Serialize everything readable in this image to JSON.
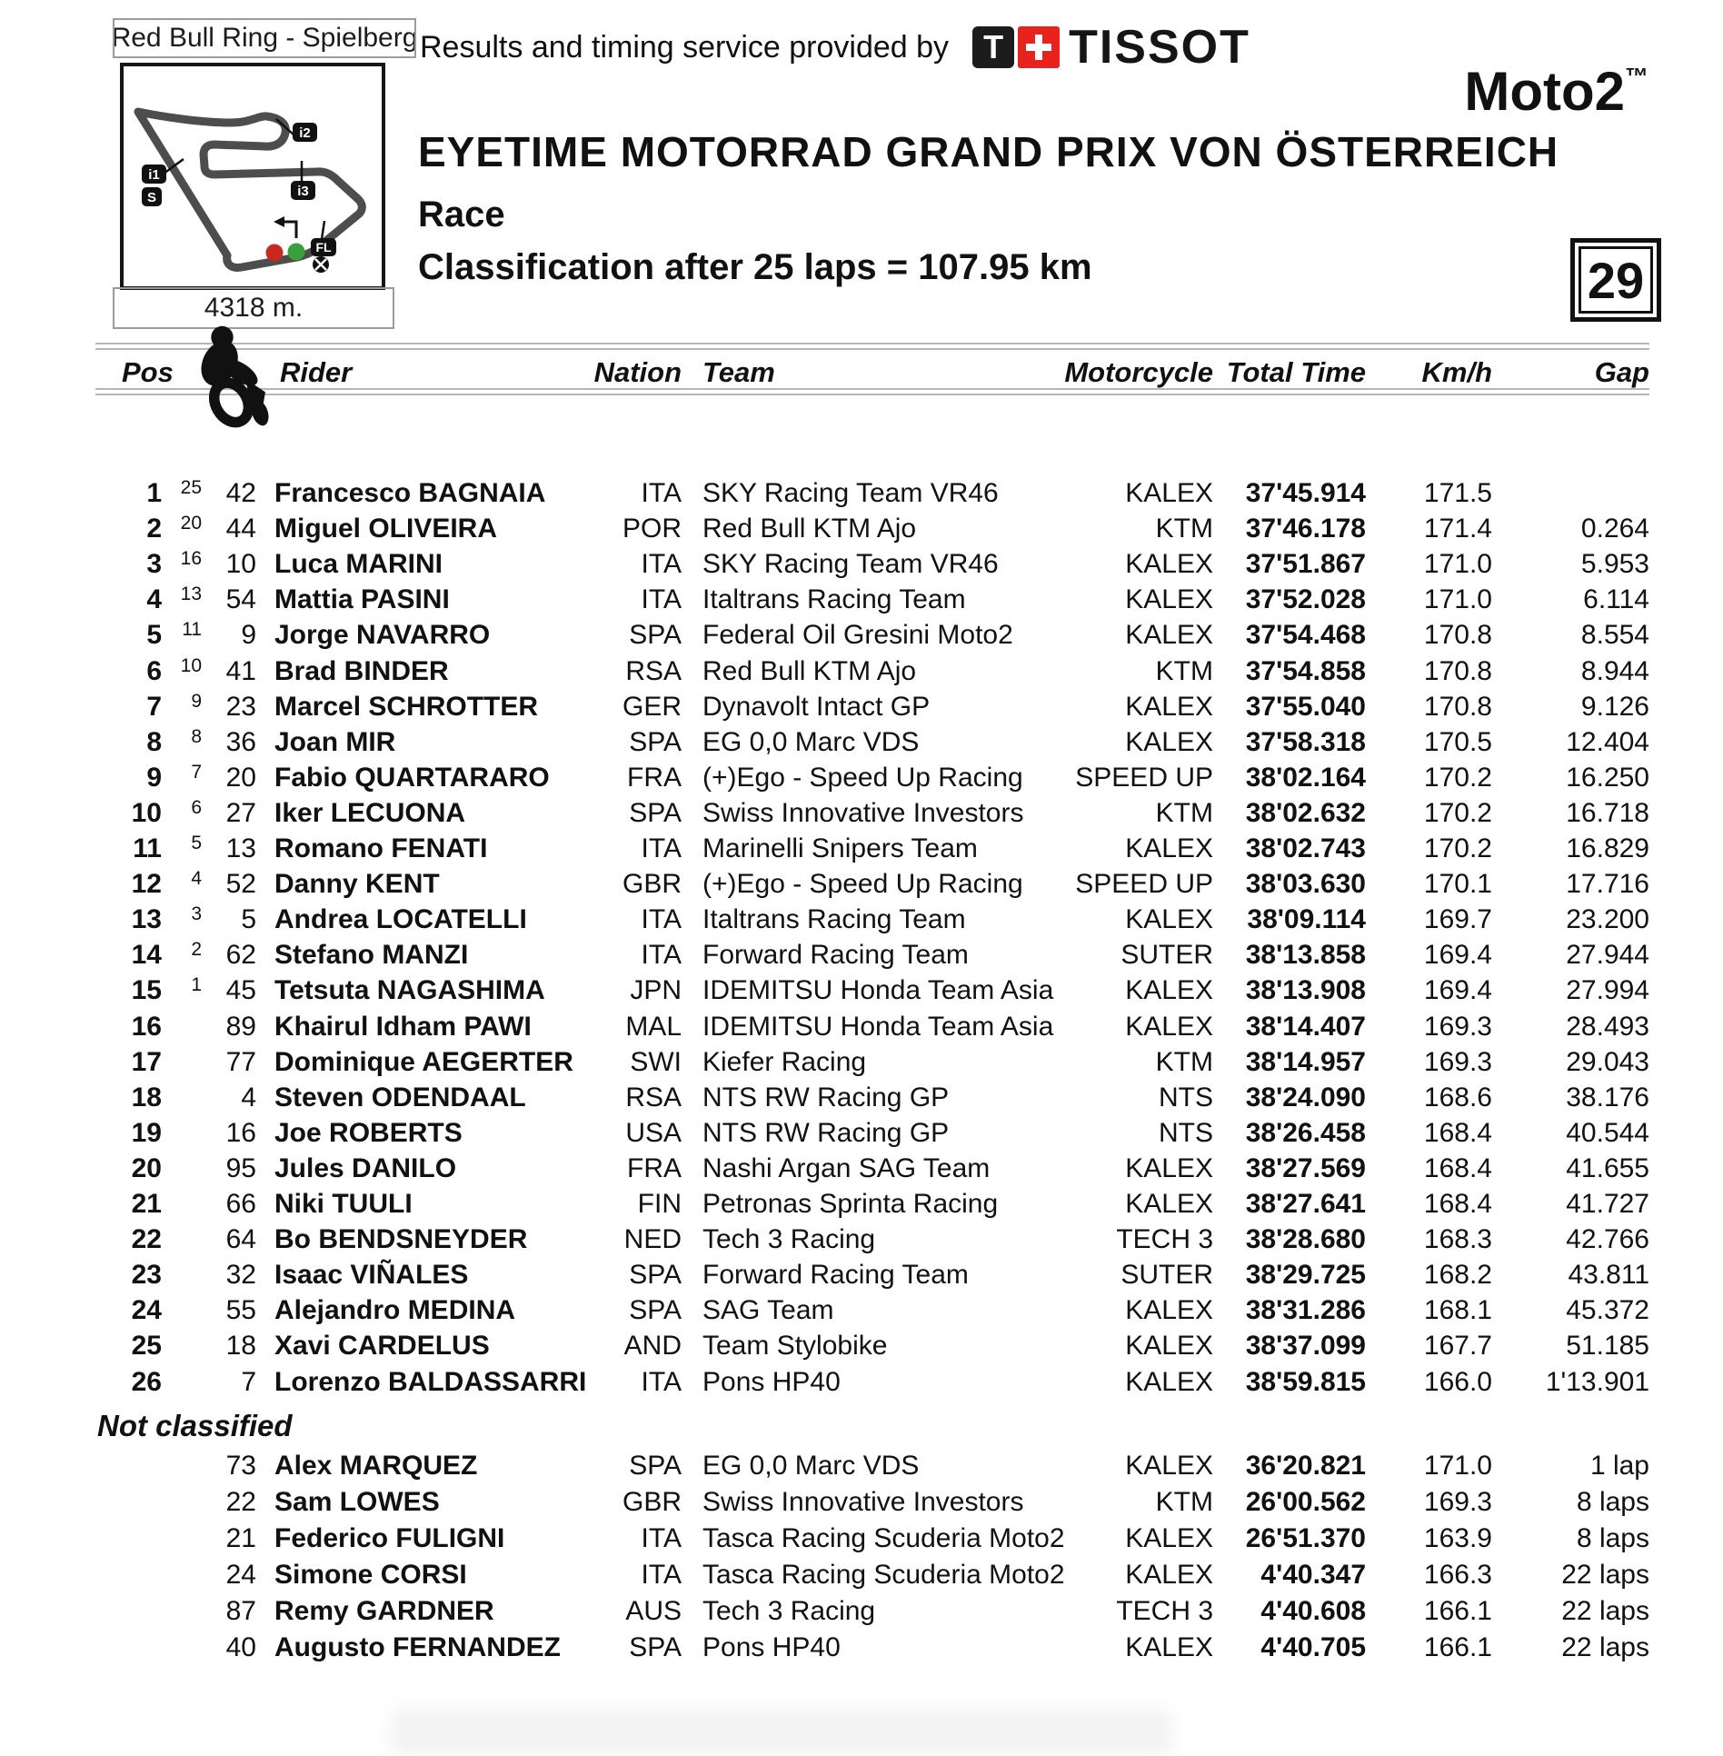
{
  "page": {
    "number": "29"
  },
  "header": {
    "track_name": "Red Bull Ring - Spielberg",
    "track_length": "4318 m.",
    "provider_text": "Results and timing service provided by",
    "tissot_t": "T",
    "tissot_label": "TISSOT",
    "class_label": "Moto2",
    "trademark": "™",
    "event_title": "EYETIME MOTORRAD GRAND PRIX VON ÖSTERREICH",
    "session": "Race",
    "classification_line": "Classification after 25 laps = 107.95 km"
  },
  "map": {
    "markers": {
      "i1": "i1",
      "s": "S",
      "i2": "i2",
      "i3": "i3",
      "fl": "FL"
    }
  },
  "colors": {
    "tissot_red": "#e8221d",
    "dot_red": "#c8281e",
    "dot_green": "#3aa03a",
    "track_gray": "#4d4d4d"
  },
  "table": {
    "columns": {
      "pos": "Pos",
      "rider": "Rider",
      "nation": "Nation",
      "team": "Team",
      "motorcycle": "Motorcycle",
      "total_time": "Total Time",
      "kmh": "Km/h",
      "gap": "Gap"
    },
    "rows": [
      {
        "pos": "1",
        "pts": "25",
        "num": "42",
        "rider": "Francesco BAGNAIA",
        "nation": "ITA",
        "team": "SKY Racing Team VR46",
        "moto": "KALEX",
        "time": "37'45.914",
        "kmh": "171.5",
        "gap": ""
      },
      {
        "pos": "2",
        "pts": "20",
        "num": "44",
        "rider": "Miguel OLIVEIRA",
        "nation": "POR",
        "team": "Red Bull KTM Ajo",
        "moto": "KTM",
        "time": "37'46.178",
        "kmh": "171.4",
        "gap": "0.264"
      },
      {
        "pos": "3",
        "pts": "16",
        "num": "10",
        "rider": "Luca MARINI",
        "nation": "ITA",
        "team": "SKY Racing Team VR46",
        "moto": "KALEX",
        "time": "37'51.867",
        "kmh": "171.0",
        "gap": "5.953"
      },
      {
        "pos": "4",
        "pts": "13",
        "num": "54",
        "rider": "Mattia PASINI",
        "nation": "ITA",
        "team": "Italtrans Racing Team",
        "moto": "KALEX",
        "time": "37'52.028",
        "kmh": "171.0",
        "gap": "6.114"
      },
      {
        "pos": "5",
        "pts": "11",
        "num": "9",
        "rider": "Jorge NAVARRO",
        "nation": "SPA",
        "team": "Federal Oil Gresini Moto2",
        "moto": "KALEX",
        "time": "37'54.468",
        "kmh": "170.8",
        "gap": "8.554"
      },
      {
        "pos": "6",
        "pts": "10",
        "num": "41",
        "rider": "Brad BINDER",
        "nation": "RSA",
        "team": "Red Bull KTM Ajo",
        "moto": "KTM",
        "time": "37'54.858",
        "kmh": "170.8",
        "gap": "8.944"
      },
      {
        "pos": "7",
        "pts": "9",
        "num": "23",
        "rider": "Marcel SCHROTTER",
        "nation": "GER",
        "team": "Dynavolt Intact GP",
        "moto": "KALEX",
        "time": "37'55.040",
        "kmh": "170.8",
        "gap": "9.126"
      },
      {
        "pos": "8",
        "pts": "8",
        "num": "36",
        "rider": "Joan MIR",
        "nation": "SPA",
        "team": "EG 0,0 Marc VDS",
        "moto": "KALEX",
        "time": "37'58.318",
        "kmh": "170.5",
        "gap": "12.404"
      },
      {
        "pos": "9",
        "pts": "7",
        "num": "20",
        "rider": "Fabio QUARTARARO",
        "nation": "FRA",
        "team": "(+)Ego - Speed Up Racing",
        "moto": "SPEED UP",
        "time": "38'02.164",
        "kmh": "170.2",
        "gap": "16.250"
      },
      {
        "pos": "10",
        "pts": "6",
        "num": "27",
        "rider": "Iker LECUONA",
        "nation": "SPA",
        "team": "Swiss Innovative Investors",
        "moto": "KTM",
        "time": "38'02.632",
        "kmh": "170.2",
        "gap": "16.718"
      },
      {
        "pos": "11",
        "pts": "5",
        "num": "13",
        "rider": "Romano FENATI",
        "nation": "ITA",
        "team": "Marinelli Snipers Team",
        "moto": "KALEX",
        "time": "38'02.743",
        "kmh": "170.2",
        "gap": "16.829"
      },
      {
        "pos": "12",
        "pts": "4",
        "num": "52",
        "rider": "Danny KENT",
        "nation": "GBR",
        "team": "(+)Ego - Speed Up Racing",
        "moto": "SPEED UP",
        "time": "38'03.630",
        "kmh": "170.1",
        "gap": "17.716"
      },
      {
        "pos": "13",
        "pts": "3",
        "num": "5",
        "rider": "Andrea LOCATELLI",
        "nation": "ITA",
        "team": "Italtrans Racing Team",
        "moto": "KALEX",
        "time": "38'09.114",
        "kmh": "169.7",
        "gap": "23.200"
      },
      {
        "pos": "14",
        "pts": "2",
        "num": "62",
        "rider": "Stefano MANZI",
        "nation": "ITA",
        "team": "Forward Racing Team",
        "moto": "SUTER",
        "time": "38'13.858",
        "kmh": "169.4",
        "gap": "27.944"
      },
      {
        "pos": "15",
        "pts": "1",
        "num": "45",
        "rider": "Tetsuta NAGASHIMA",
        "nation": "JPN",
        "team": "IDEMITSU Honda Team Asia",
        "moto": "KALEX",
        "time": "38'13.908",
        "kmh": "169.4",
        "gap": "27.994"
      },
      {
        "pos": "16",
        "pts": "",
        "num": "89",
        "rider": "Khairul Idham PAWI",
        "nation": "MAL",
        "team": "IDEMITSU Honda Team Asia",
        "moto": "KALEX",
        "time": "38'14.407",
        "kmh": "169.3",
        "gap": "28.493"
      },
      {
        "pos": "17",
        "pts": "",
        "num": "77",
        "rider": "Dominique AEGERTER",
        "nation": "SWI",
        "team": "Kiefer Racing",
        "moto": "KTM",
        "time": "38'14.957",
        "kmh": "169.3",
        "gap": "29.043"
      },
      {
        "pos": "18",
        "pts": "",
        "num": "4",
        "rider": "Steven ODENDAAL",
        "nation": "RSA",
        "team": "NTS RW Racing GP",
        "moto": "NTS",
        "time": "38'24.090",
        "kmh": "168.6",
        "gap": "38.176"
      },
      {
        "pos": "19",
        "pts": "",
        "num": "16",
        "rider": "Joe ROBERTS",
        "nation": "USA",
        "team": "NTS RW Racing GP",
        "moto": "NTS",
        "time": "38'26.458",
        "kmh": "168.4",
        "gap": "40.544"
      },
      {
        "pos": "20",
        "pts": "",
        "num": "95",
        "rider": "Jules DANILO",
        "nation": "FRA",
        "team": "Nashi Argan SAG Team",
        "moto": "KALEX",
        "time": "38'27.569",
        "kmh": "168.4",
        "gap": "41.655"
      },
      {
        "pos": "21",
        "pts": "",
        "num": "66",
        "rider": "Niki TUULI",
        "nation": "FIN",
        "team": "Petronas Sprinta Racing",
        "moto": "KALEX",
        "time": "38'27.641",
        "kmh": "168.4",
        "gap": "41.727"
      },
      {
        "pos": "22",
        "pts": "",
        "num": "64",
        "rider": "Bo BENDSNEYDER",
        "nation": "NED",
        "team": "Tech 3 Racing",
        "moto": "TECH 3",
        "time": "38'28.680",
        "kmh": "168.3",
        "gap": "42.766"
      },
      {
        "pos": "23",
        "pts": "",
        "num": "32",
        "rider": "Isaac VIÑALES",
        "nation": "SPA",
        "team": "Forward Racing Team",
        "moto": "SUTER",
        "time": "38'29.725",
        "kmh": "168.2",
        "gap": "43.811"
      },
      {
        "pos": "24",
        "pts": "",
        "num": "55",
        "rider": "Alejandro MEDINA",
        "nation": "SPA",
        "team": "SAG Team",
        "moto": "KALEX",
        "time": "38'31.286",
        "kmh": "168.1",
        "gap": "45.372"
      },
      {
        "pos": "25",
        "pts": "",
        "num": "18",
        "rider": "Xavi CARDELUS",
        "nation": "AND",
        "team": "Team Stylobike",
        "moto": "KALEX",
        "time": "38'37.099",
        "kmh": "167.7",
        "gap": "51.185"
      },
      {
        "pos": "26",
        "pts": "",
        "num": "7",
        "rider": "Lorenzo BALDASSARRI",
        "nation": "ITA",
        "team": "Pons HP40",
        "moto": "KALEX",
        "time": "38'59.815",
        "kmh": "166.0",
        "gap": "1'13.901"
      }
    ],
    "not_classified_label": "Not classified",
    "not_classified_rows": [
      {
        "num": "73",
        "rider": "Alex MARQUEZ",
        "nation": "SPA",
        "team": "EG 0,0 Marc VDS",
        "moto": "KALEX",
        "time": "36'20.821",
        "kmh": "171.0",
        "gap": "1 lap"
      },
      {
        "num": "22",
        "rider": "Sam LOWES",
        "nation": "GBR",
        "team": "Swiss Innovative Investors",
        "moto": "KTM",
        "time": "26'00.562",
        "kmh": "169.3",
        "gap": "8 laps"
      },
      {
        "num": "21",
        "rider": "Federico FULIGNI",
        "nation": "ITA",
        "team": "Tasca Racing Scuderia Moto2",
        "moto": "KALEX",
        "time": "26'51.370",
        "kmh": "163.9",
        "gap": "8 laps"
      },
      {
        "num": "24",
        "rider": "Simone CORSI",
        "nation": "ITA",
        "team": "Tasca Racing Scuderia Moto2",
        "moto": "KALEX",
        "time": "4'40.347",
        "kmh": "166.3",
        "gap": "22 laps"
      },
      {
        "num": "87",
        "rider": "Remy GARDNER",
        "nation": "AUS",
        "team": "Tech 3 Racing",
        "moto": "TECH 3",
        "time": "4'40.608",
        "kmh": "166.1",
        "gap": "22 laps"
      },
      {
        "num": "40",
        "rider": "Augusto FERNANDEZ",
        "nation": "SPA",
        "team": "Pons HP40",
        "moto": "KALEX",
        "time": "4'40.705",
        "kmh": "166.1",
        "gap": "22 laps"
      }
    ]
  }
}
